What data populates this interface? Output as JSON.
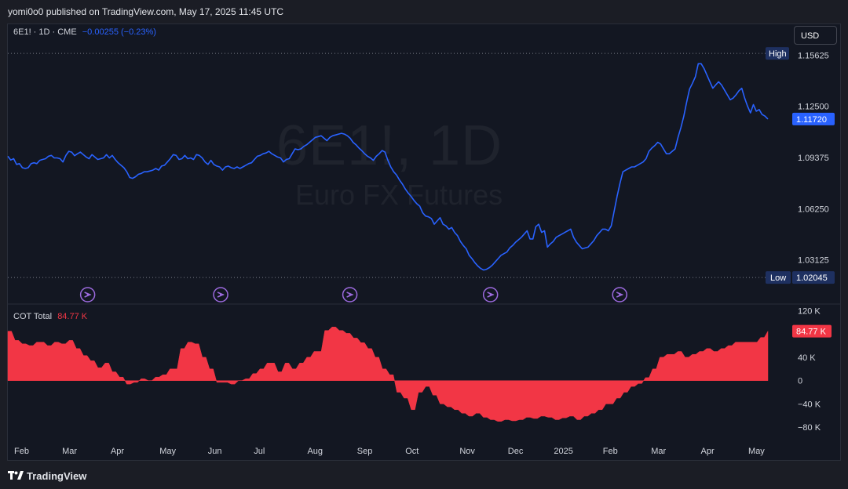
{
  "header": {
    "published": "yomi0o0 published on TradingView.com, May 17, 2025 11:45 UTC"
  },
  "legend": {
    "symbol": "6E1! · 1D · CME",
    "change": "−0.00255 (−0.23%)"
  },
  "watermark": {
    "symbol": "6E1!, 1D",
    "description": "Euro FX Futures"
  },
  "currency_button": "USD",
  "footer": {
    "brand": "TradingView",
    "logo_icon": "tradingview-logo-icon"
  },
  "cot_legend": {
    "name": "COT Total",
    "value": "84.77 K"
  },
  "colors": {
    "price_line": "#2962ff",
    "cot_fill": "#f23645",
    "background": "#131722",
    "high_low_label": "#1e3060"
  },
  "chart_data": [
    {
      "type": "line",
      "title": "6E1! · 1D · CME",
      "series": [
        {
          "values": [
            1.0945,
            1.0922,
            1.093,
            1.0895,
            1.09,
            1.0875,
            1.087,
            1.0875,
            1.09,
            1.0905,
            1.09,
            1.092,
            1.0925,
            1.093,
            1.0945,
            1.095,
            1.0935,
            1.0935,
            1.093,
            1.091,
            1.095,
            1.0975,
            1.097,
            1.0948,
            1.096,
            1.097,
            1.0955,
            1.094,
            1.093,
            1.0955,
            1.094,
            1.0925,
            1.093,
            1.0935,
            1.0955,
            1.0935,
            1.095,
            1.0925,
            1.0905,
            1.089,
            1.0875,
            1.085,
            1.0815,
            1.081,
            1.082,
            1.0835,
            1.084,
            1.085,
            1.085,
            1.0855,
            1.086,
            1.087,
            1.086,
            1.0885,
            1.089,
            1.091,
            1.093,
            1.0955,
            1.095,
            1.0925,
            1.093,
            1.095,
            1.093,
            1.0935,
            1.0925,
            1.0955,
            1.095,
            1.0935,
            1.091,
            1.0895,
            1.092,
            1.0895,
            1.0885,
            1.088,
            1.086,
            1.088,
            1.0885,
            1.0875,
            1.087,
            1.088,
            1.087,
            1.088,
            1.089,
            1.09,
            1.0905,
            1.0925,
            1.0945,
            1.095,
            1.096,
            1.0965,
            1.0975,
            1.096,
            1.095,
            1.094,
            1.0935,
            1.091,
            1.0925,
            1.093,
            1.096,
            1.099,
            1.0985,
            1.099,
            1.1005,
            1.1015,
            1.103,
            1.1045,
            1.106,
            1.1065,
            1.107,
            1.1055,
            1.104,
            1.106,
            1.107,
            1.1075,
            1.108,
            1.1085,
            1.108,
            1.107,
            1.1055,
            1.103,
            1.1015,
            1.0995,
            1.098,
            1.096,
            1.0945,
            1.0935,
            1.092,
            1.0945,
            1.096,
            1.098,
            1.097,
            1.092,
            1.088,
            1.085,
            1.083,
            1.08,
            1.0775,
            1.0745,
            1.072,
            1.07,
            1.0675,
            1.0655,
            1.064,
            1.06,
            1.058,
            1.0575,
            1.0565,
            1.053,
            1.055,
            1.057,
            1.053,
            1.052,
            1.05,
            1.051,
            1.048,
            1.046,
            1.0425,
            1.04,
            1.038,
            1.034,
            1.032,
            1.0295,
            1.0275,
            1.026,
            1.025,
            1.0255,
            1.0265,
            1.028,
            1.03,
            1.032,
            1.034,
            1.035,
            1.036,
            1.0385,
            1.04,
            1.042,
            1.0435,
            1.045,
            1.047,
            1.049,
            1.044,
            1.044,
            1.0515,
            1.053,
            1.048,
            1.049,
            1.039,
            1.041,
            1.0425,
            1.045,
            1.046,
            1.047,
            1.048,
            1.049,
            1.05,
            1.045,
            1.042,
            1.04,
            1.038,
            1.0385,
            1.039,
            1.041,
            1.043,
            1.046,
            1.048,
            1.05,
            1.05,
            1.049,
            1.052,
            1.061,
            1.07,
            1.078,
            1.085,
            1.086,
            1.087,
            1.088,
            1.088,
            1.089,
            1.09,
            1.091,
            1.093,
            1.0975,
            1.0995,
            1.101,
            1.103,
            1.102,
            1.099,
            1.096,
            1.096,
            1.0975,
            1.099,
            1.106,
            1.112,
            1.119,
            1.1275,
            1.1355,
            1.139,
            1.143,
            1.151,
            1.151,
            1.148,
            1.144,
            1.14,
            1.136,
            1.138,
            1.14,
            1.138,
            1.135,
            1.132,
            1.129,
            1.13,
            1.132,
            1.1345,
            1.136,
            1.13,
            1.125,
            1.121,
            1.126,
            1.122,
            1.123,
            1.12,
            1.119,
            1.1172
          ]
        }
      ],
      "ylim": [
        1.01,
        1.165
      ],
      "yticks": [
        1.15625,
        1.125,
        1.09375,
        1.0625,
        1.03125
      ],
      "ytick_labels": [
        "1.15625",
        "1.12500",
        "1.09375",
        "1.06250",
        "1.03125"
      ],
      "last_value_label": "1.11720",
      "high_label": "High",
      "high_value": 1.1573,
      "low_label": "Low",
      "low_value": 1.02045,
      "low_value_label": "1.02045",
      "event_markers": [
        0.105,
        0.28,
        0.45,
        0.635,
        0.805
      ],
      "grid": false
    },
    {
      "type": "area",
      "title": "COT Total",
      "series": [
        {
          "name": "COT Total",
          "values": [
            84.77,
            84.77,
            69,
            69,
            63,
            63,
            60,
            60,
            66,
            66,
            66,
            60,
            60,
            66,
            66,
            63,
            63,
            69,
            69,
            55,
            55,
            43,
            43,
            34,
            34,
            22,
            22,
            30,
            30,
            15,
            15,
            6,
            6,
            -6,
            -6,
            -3,
            -3,
            3,
            3,
            0,
            0,
            6,
            6,
            10,
            10,
            20,
            20,
            20,
            55,
            55,
            66,
            66,
            63,
            63,
            40,
            40,
            20,
            20,
            -3,
            -3,
            -3,
            -3,
            -6,
            -6,
            0,
            0,
            3,
            3,
            12,
            12,
            20,
            20,
            30,
            30,
            30,
            15,
            15,
            30,
            30,
            20,
            20,
            30,
            30,
            40,
            40,
            50,
            50,
            50,
            86,
            86,
            92,
            92,
            86,
            86,
            81,
            81,
            73,
            73,
            65,
            65,
            55,
            55,
            40,
            40,
            20,
            20,
            10,
            10,
            -20,
            -20,
            -30,
            -30,
            -50,
            -50,
            -20,
            -20,
            -10,
            -10,
            -25,
            -25,
            -40,
            -40,
            -45,
            -45,
            -50,
            -50,
            -56,
            -56,
            -61,
            -61,
            -56,
            -56,
            -63,
            -63,
            -67,
            -67,
            -70,
            -70,
            -67,
            -67,
            -69,
            -69,
            -67,
            -67,
            -63,
            -63,
            -65,
            -65,
            -61,
            -61,
            -63,
            -63,
            -67,
            -67,
            -64,
            -64,
            -61,
            -61,
            -67,
            -67,
            -61,
            -61,
            -56,
            -56,
            -50,
            -50,
            -40,
            -40,
            -40,
            -30,
            -30,
            -20,
            -20,
            -10,
            -10,
            -5,
            -5,
            5,
            5,
            20,
            20,
            40,
            40,
            45,
            45,
            45,
            50,
            50,
            40,
            40,
            45,
            45,
            50,
            50,
            55,
            55,
            50,
            50,
            55,
            55,
            60,
            60,
            66,
            66,
            66,
            66,
            66,
            66,
            66,
            74,
            74,
            84.77
          ]
        }
      ],
      "ylim": [
        -100,
        130
      ],
      "yticks": [
        120,
        40,
        0,
        -40,
        -80
      ],
      "ytick_labels": [
        "120 K",
        "40 K",
        "0",
        "−40 K",
        "−80 K"
      ],
      "last_value_label": "84.77 K",
      "grid": false
    }
  ],
  "x_axis": {
    "labels": [
      "Feb",
      "Mar",
      "Apr",
      "May",
      "Jun",
      "Jul",
      "Aug",
      "Sep",
      "Oct",
      "Nov",
      "Dec",
      "2025",
      "Feb",
      "Mar",
      "Apr",
      "May"
    ],
    "positions": [
      0.0,
      0.0637,
      0.128,
      0.193,
      0.257,
      0.318,
      0.389,
      0.455,
      0.519,
      0.591,
      0.655,
      0.716,
      0.781,
      0.845,
      0.911,
      0.974
    ]
  }
}
